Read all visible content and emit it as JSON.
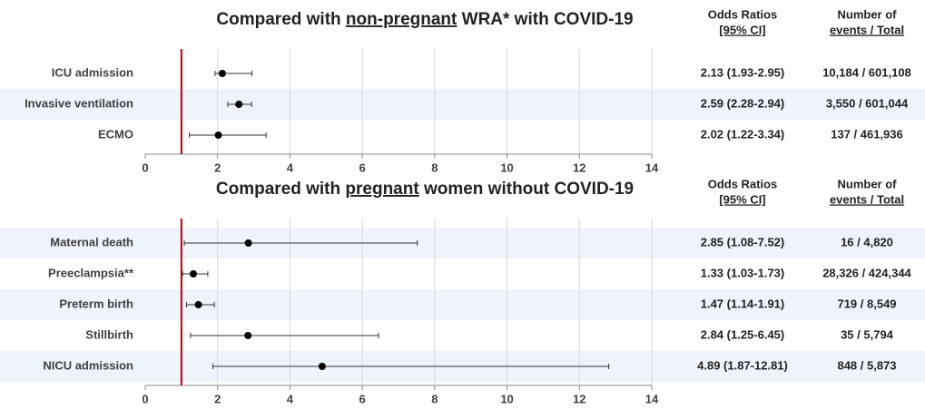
{
  "chart_data": [
    {
      "type": "forest",
      "title": [
        "Compared with ",
        "non-pregnant",
        " WRA* with COVID-19"
      ],
      "title_underline": 1,
      "column_headers": [
        [
          "Odds Ratios",
          "[95% CI]"
        ],
        [
          "Number of",
          "events / Total"
        ]
      ],
      "categories": [
        "ICU admission",
        "Invasive ventilation",
        "ECMO"
      ],
      "values": [
        2.13,
        2.59,
        2.02
      ],
      "lower": [
        1.93,
        2.28,
        1.22
      ],
      "upper": [
        2.95,
        2.94,
        3.34
      ],
      "value_labels": [
        "2.13 (1.93-2.95)",
        "2.59 (2.28-2.94)",
        "2.02 (1.22-3.34)"
      ],
      "events": [
        "10,184 / 601,108",
        "3,550 / 601,044",
        "137 / 461,936"
      ],
      "shaded_rows": [
        1
      ],
      "xlim": [
        0,
        14
      ],
      "xticks": [
        0,
        2,
        4,
        6,
        8,
        10,
        12,
        14
      ],
      "ref_line": 1,
      "ref_color": "#c00000",
      "color": "#000000",
      "grid": true
    },
    {
      "type": "forest",
      "title": [
        "Compared with ",
        "pregnant",
        " women without COVID-19"
      ],
      "title_underline": 1,
      "column_headers": [
        [
          "Odds Ratios",
          "[95% CI]"
        ],
        [
          "Number of",
          "events / Total"
        ]
      ],
      "categories": [
        "Maternal death",
        "Preeclampsia**",
        "Preterm birth",
        "Stillbirth",
        "NICU admission"
      ],
      "values": [
        2.85,
        1.33,
        1.47,
        2.84,
        4.89
      ],
      "lower": [
        1.08,
        1.03,
        1.14,
        1.25,
        1.87
      ],
      "upper": [
        7.52,
        1.73,
        1.91,
        6.45,
        12.81
      ],
      "value_labels": [
        "2.85 (1.08-7.52)",
        "1.33 (1.03-1.73)",
        "1.47 (1.14-1.91)",
        "2.84 (1.25-6.45)",
        "4.89 (1.87-12.81)"
      ],
      "events": [
        "16 / 4,820",
        "28,326 / 424,344",
        "719 / 8,549",
        "35 / 5,794",
        "848 / 5,873"
      ],
      "shaded_rows": [
        0,
        2,
        4
      ],
      "xlim": [
        0,
        14
      ],
      "xticks": [
        0,
        2,
        4,
        6,
        8,
        10,
        12,
        14
      ],
      "ref_line": 1,
      "ref_color": "#c00000",
      "color": "#000000",
      "grid": true
    }
  ]
}
